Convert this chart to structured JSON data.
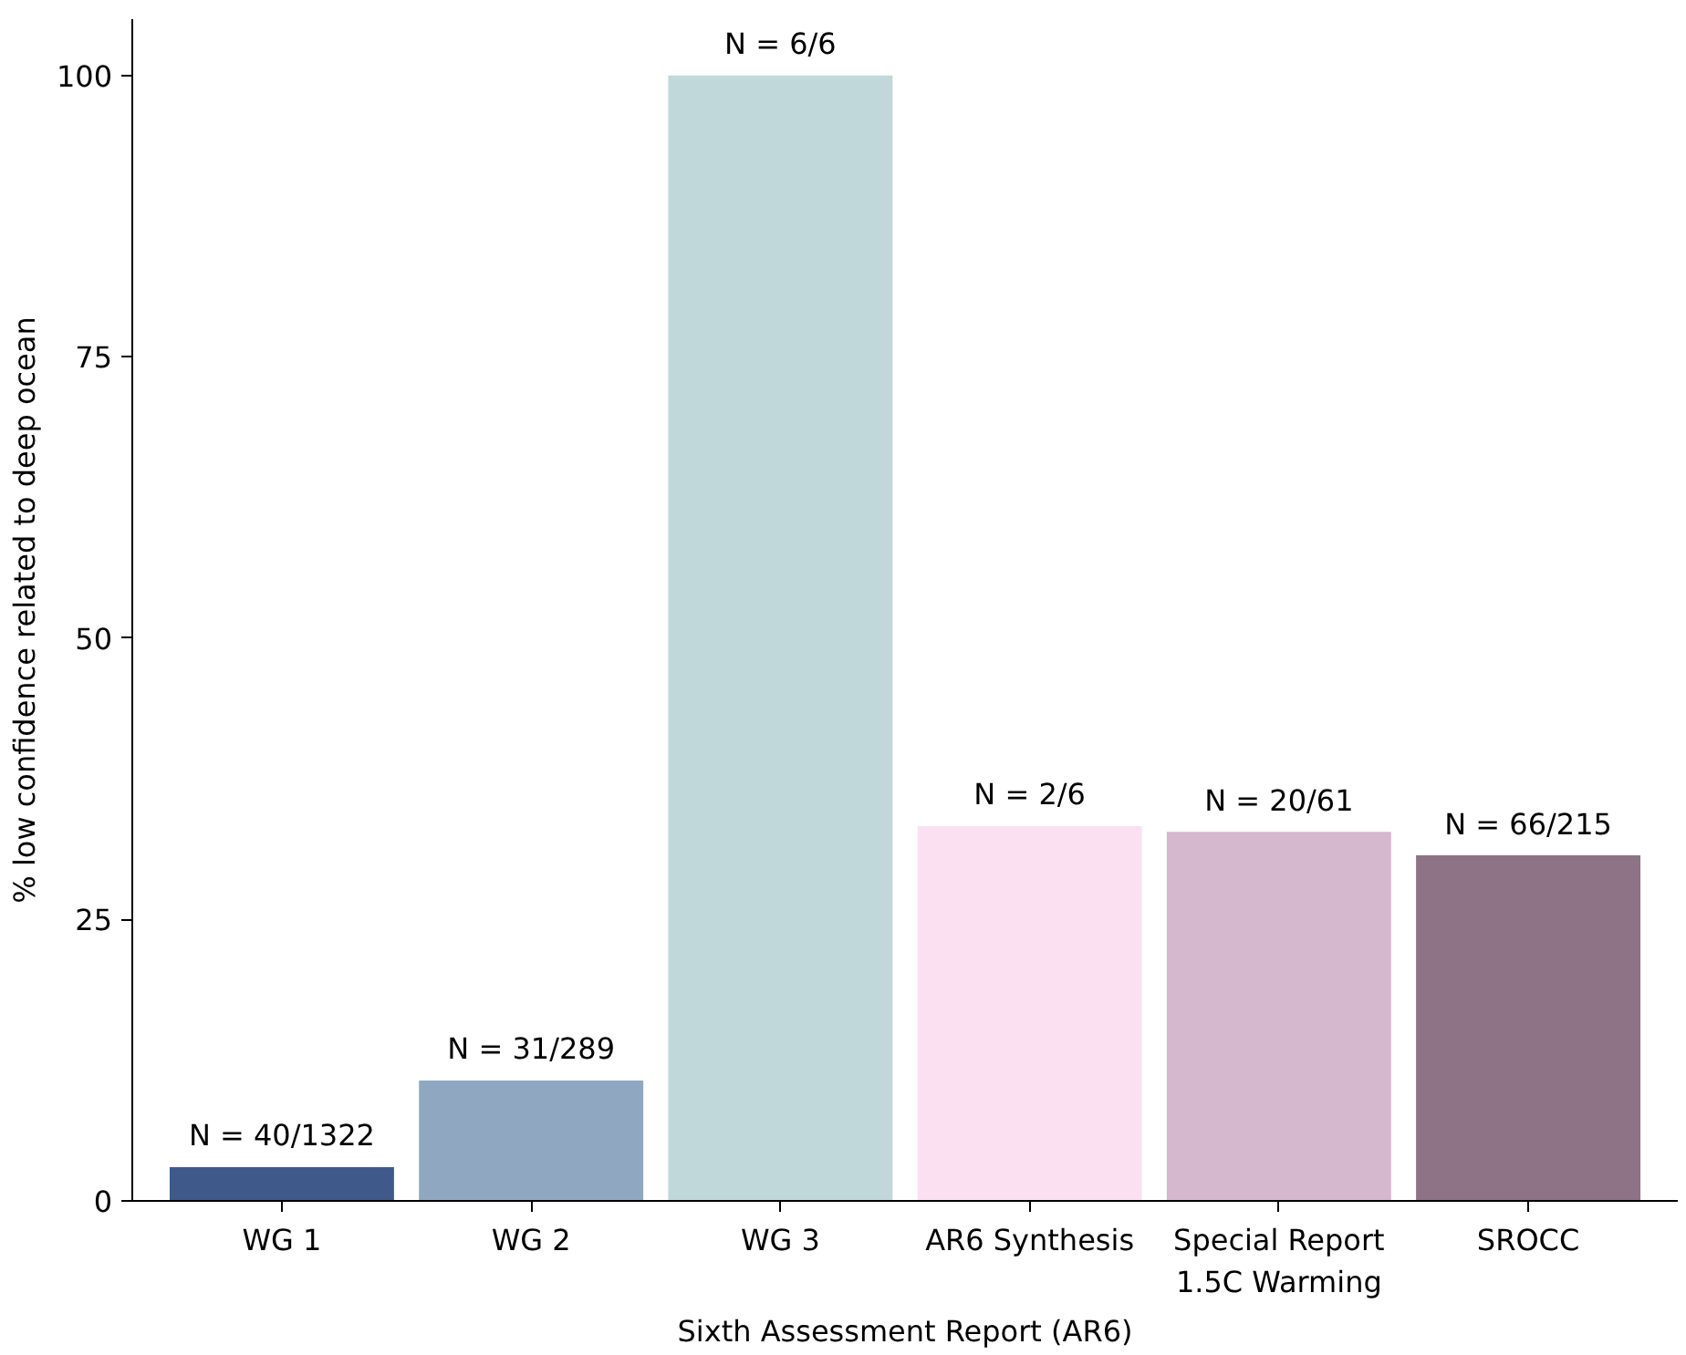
{
  "chart_data": {
    "type": "bar",
    "xlabel": "Sixth Assessment Report (AR6)",
    "ylabel": "% low confidence related to deep ocean",
    "categories": [
      "WG 1",
      "WG 2",
      "WG 3",
      "AR6 Synthesis",
      "Special Report\n1.5C Warming",
      "SROCC"
    ],
    "values": [
      3.0,
      10.7,
      100,
      33.3,
      32.8,
      30.7
    ],
    "colors": [
      "#3f5a8a",
      "#8fa7c0",
      "#c0d8d9",
      "#fbe0f2",
      "#d5b8cd",
      "#8d7385"
    ],
    "value_labels": [
      "N = 40/1322",
      "N = 31/289",
      "N = 6/6",
      "N = 2/6",
      "N = 20/61",
      "N = 66/215"
    ],
    "ylim": [
      0,
      105
    ],
    "yticks": [
      0,
      25,
      50,
      75,
      100
    ],
    "grid": false
  }
}
